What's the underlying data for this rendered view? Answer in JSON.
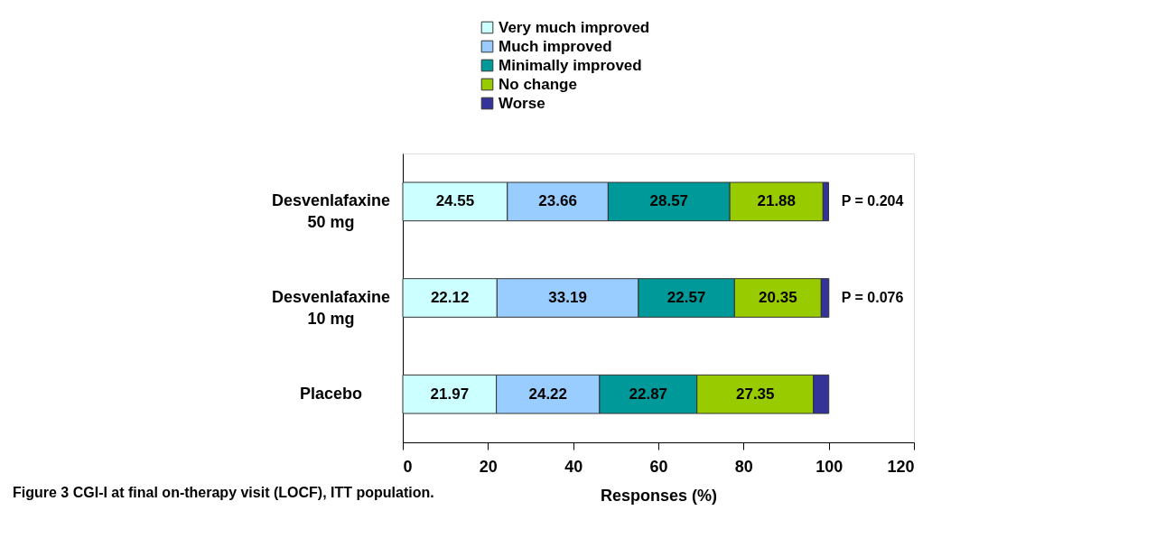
{
  "chart_data": {
    "type": "bar",
    "orientation": "horizontal",
    "stacked": true,
    "categories": [
      "Desvenlafaxine\n50 mg",
      "Desvenlafaxine\n10 mg",
      "Placebo"
    ],
    "series": [
      {
        "name": "Very much improved",
        "color": "#ccffff",
        "values": [
          24.55,
          22.12,
          21.97
        ],
        "value_labels": [
          "24.55",
          "22.12",
          "21.97"
        ]
      },
      {
        "name": "Much improved",
        "color": "#99ccff",
        "values": [
          23.66,
          33.19,
          24.22
        ],
        "value_labels": [
          "23.66",
          "33.19",
          "24.22"
        ]
      },
      {
        "name": "Minimally improved",
        "color": "#009999",
        "values": [
          28.57,
          22.57,
          22.87
        ],
        "value_labels": [
          "28.57",
          "22.57",
          "22.87"
        ]
      },
      {
        "name": "No change",
        "color": "#99cc00",
        "values": [
          21.88,
          20.35,
          27.35
        ],
        "value_labels": [
          "21.88",
          "20.35",
          "27.35"
        ]
      },
      {
        "name": "Worse",
        "color": "#333399",
        "values": [
          1.3,
          1.8,
          3.6
        ],
        "value_labels": [
          null,
          null,
          null
        ]
      }
    ],
    "xlim": [
      0,
      120
    ],
    "xticks": [
      0,
      20,
      40,
      60,
      80,
      100,
      120
    ],
    "xlabel": "Responses (%)",
    "legend": "top",
    "grid": false,
    "annotations": [
      {
        "text": "P = 0.204",
        "x": 100,
        "y": "Desvenlafaxine\n50 mg"
      },
      {
        "text": "P = 0.076",
        "x": 100,
        "y": "Desvenlafaxine\n10 mg"
      },
      "Figure 3 CGI-I at final on-therapy visit (LOCF), ITT population."
    ]
  }
}
